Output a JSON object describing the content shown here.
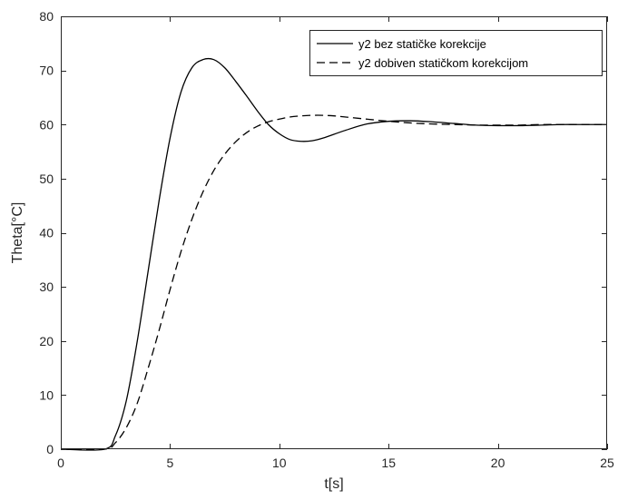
{
  "chart_data": {
    "type": "line",
    "title": "",
    "xlabel": "t[s]",
    "ylabel": "Theta[°C]",
    "xlim": [
      0,
      25
    ],
    "ylim": [
      0,
      80
    ],
    "xticks": [
      0,
      5,
      10,
      15,
      20,
      25
    ],
    "yticks": [
      0,
      10,
      20,
      30,
      40,
      50,
      60,
      70,
      80
    ],
    "xtick_labels": [
      "0",
      "5",
      "10",
      "15",
      "20",
      "25"
    ],
    "ytick_labels": [
      "0",
      "10",
      "20",
      "30",
      "40",
      "50",
      "60",
      "70",
      "80"
    ],
    "grid": false,
    "legend_position": "top-right",
    "series": [
      {
        "name": "y2 bez statičke korekcije",
        "style": "solid",
        "color": "#000000",
        "x": [
          0,
          2,
          2.5,
          3,
          3.5,
          4,
          4.5,
          5,
          5.5,
          6,
          6.5,
          7,
          7.5,
          8,
          8.5,
          9,
          9.5,
          10,
          10.5,
          11,
          11.5,
          12,
          13,
          14,
          15,
          16,
          17,
          18,
          19,
          20,
          21,
          22,
          23,
          24,
          25
        ],
        "values": [
          0,
          0,
          2.5,
          9,
          20,
          33,
          46,
          57.5,
          66,
          70.5,
          72,
          72,
          70.5,
          68,
          65.3,
          62.5,
          60,
          58.3,
          57.2,
          56.9,
          57,
          57.5,
          58.9,
          60.1,
          60.6,
          60.7,
          60.5,
          60.2,
          59.9,
          59.8,
          59.8,
          59.9,
          60,
          60,
          60
        ]
      },
      {
        "name": "y2 dobiven statičkom korekcijom",
        "style": "dashed",
        "color": "#000000",
        "x": [
          0,
          2,
          2.5,
          3,
          3.5,
          4,
          4.5,
          5,
          5.5,
          6,
          6.5,
          7,
          7.5,
          8,
          8.5,
          9,
          9.5,
          10,
          10.5,
          11,
          11.5,
          12,
          12.5,
          13,
          14,
          15,
          16,
          17,
          18,
          19,
          20,
          21,
          22,
          23,
          24,
          25
        ],
        "values": [
          0,
          0,
          1.2,
          4,
          8.5,
          15,
          22,
          29.5,
          36.5,
          42.5,
          47.5,
          51.5,
          54.5,
          56.8,
          58.5,
          59.7,
          60.5,
          61,
          61.4,
          61.6,
          61.7,
          61.7,
          61.6,
          61.4,
          61,
          60.6,
          60.3,
          60.1,
          60,
          59.9,
          59.9,
          59.9,
          60,
          60,
          60,
          60
        ]
      }
    ]
  }
}
